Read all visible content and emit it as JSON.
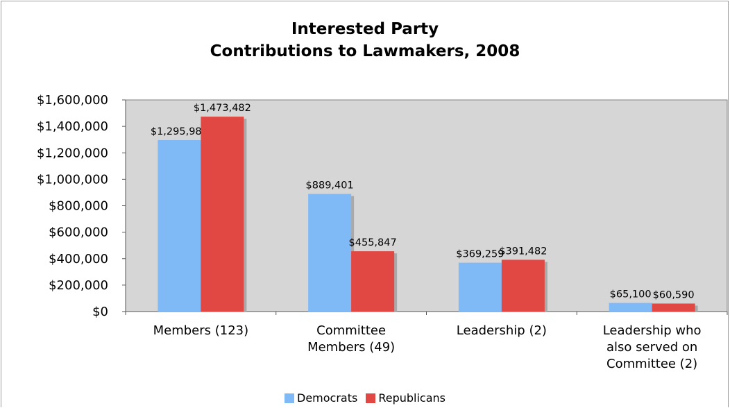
{
  "chart_data": {
    "type": "bar",
    "title_lines": [
      "Interested Party",
      "Contributions to Lawmakers, 2008"
    ],
    "categories": [
      [
        "Members (123)"
      ],
      [
        "Committee",
        "Members (49)"
      ],
      [
        "Leadership (2)"
      ],
      [
        "Leadership who",
        "also served on",
        "Committee (2)"
      ]
    ],
    "series": [
      {
        "name": "Democrats",
        "color": "#7fbaf7",
        "values": [
          1295985,
          889401,
          369259,
          65100
        ],
        "labels": [
          "$1,295,985",
          "$889,401",
          "$369,259",
          "$65,100"
        ]
      },
      {
        "name": "Republicans",
        "color": "#e24843",
        "values": [
          1473482,
          455847,
          391482,
          60590
        ],
        "labels": [
          "$1,473,482",
          "$455,847",
          "$391,482",
          "$60,590"
        ]
      }
    ],
    "y_ticks": [
      {
        "value": 0,
        "label": "$0"
      },
      {
        "value": 200000,
        "label": "$200,000"
      },
      {
        "value": 400000,
        "label": "$400,000"
      },
      {
        "value": 600000,
        "label": "$600,000"
      },
      {
        "value": 800000,
        "label": "$800,000"
      },
      {
        "value": 1000000,
        "label": "$1,000,000"
      },
      {
        "value": 1200000,
        "label": "$1,200,000"
      },
      {
        "value": 1400000,
        "label": "$1,400,000"
      },
      {
        "value": 1600000,
        "label": "$1,600,000"
      }
    ],
    "ylim": [
      0,
      1600000
    ],
    "grid": false,
    "plot_background": "#d6d6d6",
    "legend_position": "bottom"
  }
}
